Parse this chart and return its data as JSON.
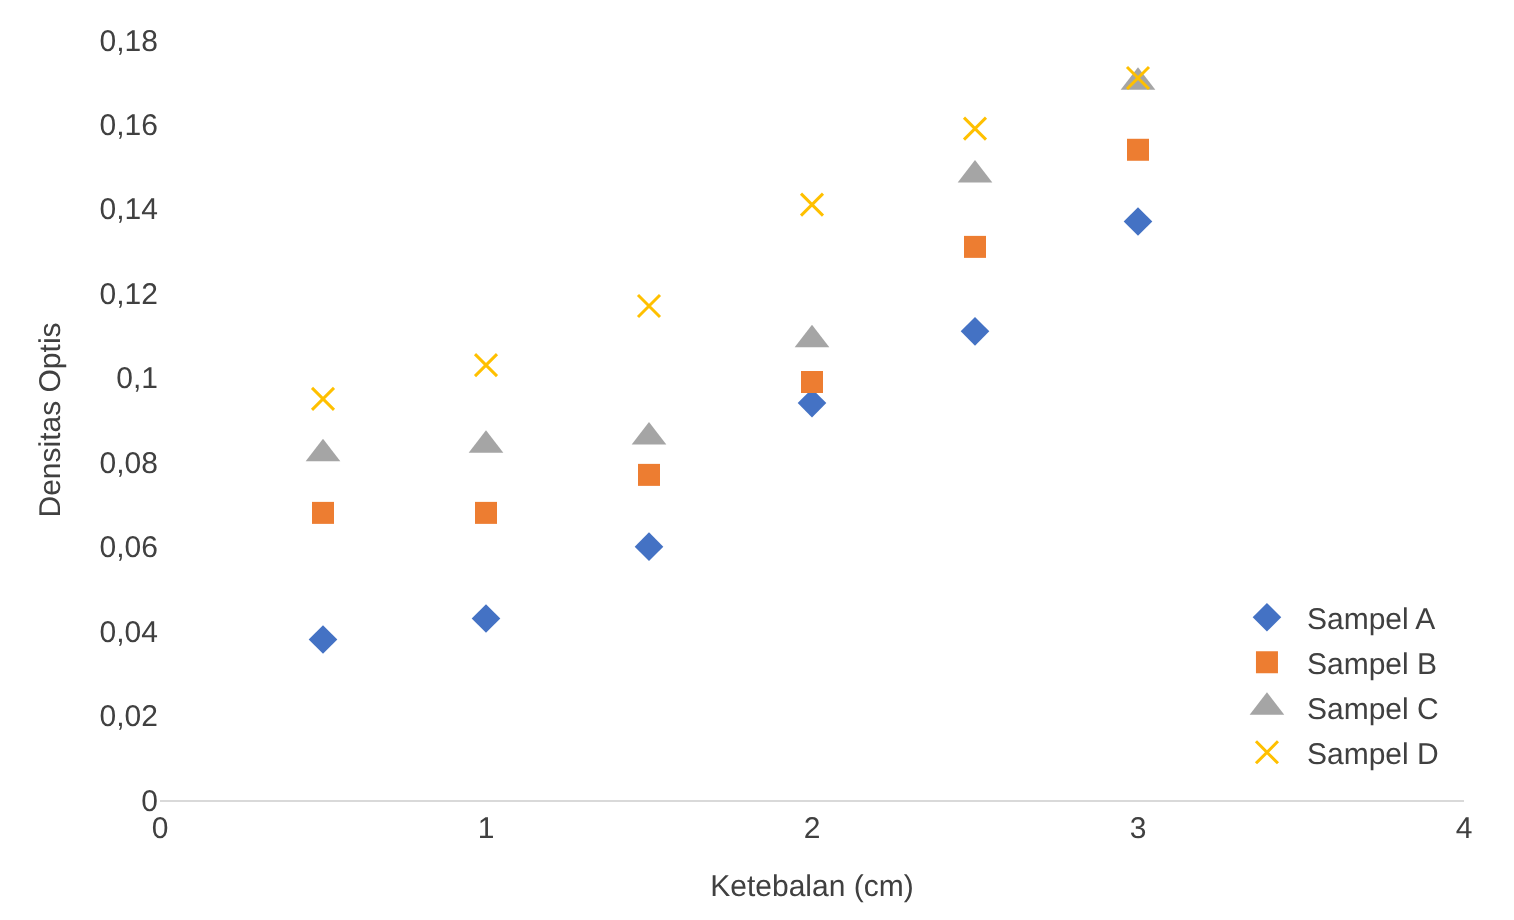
{
  "chart_data": {
    "type": "scatter",
    "xlabel": "Ketebalan (cm)",
    "ylabel": "Densitas Optis",
    "x": [
      0.5,
      1,
      1.5,
      2,
      2.5,
      3
    ],
    "xlim": [
      0,
      4
    ],
    "xticks": [
      0,
      1,
      2,
      3,
      4
    ],
    "ylim": [
      0,
      0.18
    ],
    "yticks": [
      {
        "value": 0,
        "label": "0"
      },
      {
        "value": 0.02,
        "label": "0,02"
      },
      {
        "value": 0.04,
        "label": "0,04"
      },
      {
        "value": 0.06,
        "label": "0,06"
      },
      {
        "value": 0.08,
        "label": "0,08"
      },
      {
        "value": 0.1,
        "label": "0,1"
      },
      {
        "value": 0.12,
        "label": "0,12"
      },
      {
        "value": 0.14,
        "label": "0,14"
      },
      {
        "value": 0.16,
        "label": "0,16"
      },
      {
        "value": 0.18,
        "label": "0,18"
      }
    ],
    "grid": false,
    "legend": "bottom right",
    "series": [
      {
        "name": "Sampel A",
        "color": "#4472c4",
        "marker": "diamond",
        "values": [
          0.038,
          0.043,
          0.06,
          0.094,
          0.111,
          0.137
        ]
      },
      {
        "name": "Sampel B",
        "color": "#ed7d31",
        "marker": "square",
        "values": [
          0.068,
          0.068,
          0.077,
          0.099,
          0.131,
          0.154
        ]
      },
      {
        "name": "Sampel C",
        "color": "#a5a5a5",
        "marker": "triangle",
        "values": [
          0.082,
          0.084,
          0.086,
          0.109,
          0.148,
          0.17
        ]
      },
      {
        "name": "Sampel D",
        "color": "#ffc000",
        "marker": "cross",
        "values": [
          0.095,
          0.103,
          0.117,
          0.141,
          0.159,
          0.171
        ]
      }
    ]
  }
}
